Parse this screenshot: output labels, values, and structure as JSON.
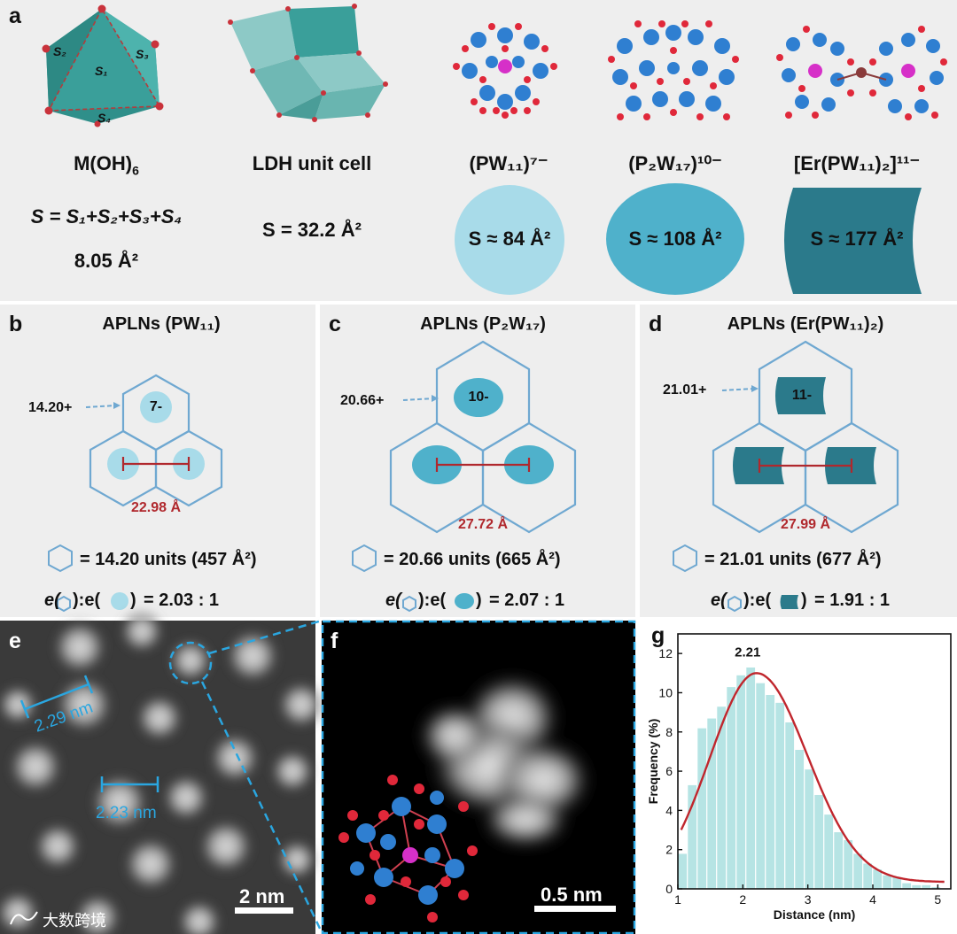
{
  "panel_a": {
    "label": "a",
    "moh6": {
      "title_base": "M(OH)",
      "title_sub": "6",
      "facets": [
        "S₁",
        "S₂",
        "S₃",
        "S₄"
      ],
      "formula": "S = S₁+S₂+S₃+S₄",
      "area": "8.05 Å²"
    },
    "ldh": {
      "title": "LDH unit cell",
      "area": "S = 32.2 Å²"
    },
    "clusters": [
      {
        "title": "(PW₁₁)⁷⁻",
        "area": "S ≈ 84 Å²",
        "color": "#a8dbe9"
      },
      {
        "title": "(P₂W₁₇)¹⁰⁻",
        "area": "S ≈ 108 Å²",
        "color": "#4fb1cb"
      },
      {
        "title": "[Er(PW₁₁)₂]¹¹⁻",
        "area": "S ≈ 177 Å²",
        "color": "#2b7a8b"
      }
    ]
  },
  "panel_b": {
    "label": "b",
    "title": "APLNs (PW₁₁)",
    "charge_in": "14.20+",
    "charge_anion": "7-",
    "distance": "22.98 Å",
    "units": "= 14.20 units (457 Å²)",
    "ratio": "= 2.03 : 1",
    "color": "#a8dbe9"
  },
  "panel_c": {
    "label": "c",
    "title": "APLNs (P₂W₁₇)",
    "charge_in": "20.66+",
    "charge_anion": "10-",
    "distance": "27.72 Å",
    "units": "= 20.66 units (665 Å²)",
    "ratio": "= 2.07 : 1",
    "color": "#4fb1cb"
  },
  "panel_d": {
    "label": "d",
    "title": "APLNs (Er(PW₁₁)₂)",
    "charge_in": "21.01+",
    "charge_anion": "11-",
    "distance": "27.99 Å",
    "units": "= 21.01 units (677 Å²)",
    "ratio": "= 1.91 : 1",
    "color": "#2b7a8b"
  },
  "ratio_e": "e(",
  "ratio_mid": "):e(",
  "ratio_close": ")",
  "panel_e": {
    "label": "e",
    "dist1": "2.29 nm",
    "dist2": "2.23 nm",
    "scale": "2 nm"
  },
  "panel_f": {
    "label": "f",
    "scale": "0.5 nm"
  },
  "watermark": "大数跨境",
  "chart_data": {
    "type": "bar",
    "label": "g",
    "xlabel": "Distance (nm)",
    "ylabel": "Frequency (%)",
    "xlim": [
      1,
      5.2
    ],
    "ylim": [
      0,
      13
    ],
    "xticks": [
      1,
      2,
      3,
      4,
      5
    ],
    "yticks": [
      0,
      2,
      4,
      6,
      8,
      10,
      12
    ],
    "bin_width": 0.15,
    "bins_start": [
      1.0,
      1.15,
      1.3,
      1.45,
      1.6,
      1.75,
      1.9,
      2.05,
      2.2,
      2.35,
      2.5,
      2.65,
      2.8,
      2.95,
      3.1,
      3.25,
      3.4,
      3.55,
      3.7,
      3.85,
      4.0,
      4.15,
      4.3,
      4.45,
      4.6,
      4.75,
      4.9
    ],
    "values": [
      1.8,
      5.3,
      8.2,
      8.7,
      9.3,
      10.3,
      10.9,
      11.3,
      10.5,
      9.9,
      9.5,
      8.5,
      7.1,
      6.1,
      4.8,
      3.8,
      2.9,
      2.5,
      1.8,
      1.3,
      1.0,
      0.7,
      0.6,
      0.3,
      0.2,
      0.2,
      0.1
    ],
    "fit_peak_x": 2.21,
    "fit_peak_y": 11.0,
    "fit_sigma_left": 0.72,
    "fit_sigma_right": 0.78,
    "peak_label": "2.21",
    "bar_color": "#b6e4e4",
    "fit_color": "#c0262d"
  }
}
